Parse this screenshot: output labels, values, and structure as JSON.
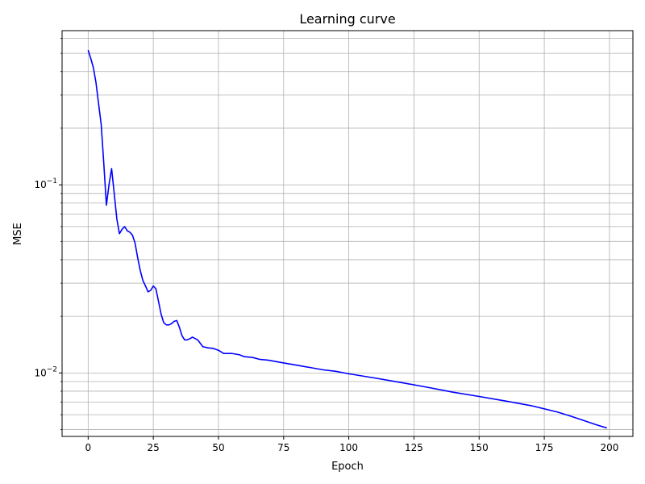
{
  "chart_data": {
    "type": "line",
    "title": "Learning curve",
    "xlabel": "Epoch",
    "ylabel": "MSE",
    "xlim": [
      -10,
      209
    ],
    "ylim": [
      0.0046,
      0.66
    ],
    "yscale": "log",
    "grid": true,
    "grid_minor": true,
    "x_ticks": [
      0,
      25,
      50,
      75,
      100,
      125,
      150,
      175,
      200
    ],
    "y_major_ticks": [
      {
        "value": 0.01,
        "label": "10",
        "exp": "−2"
      },
      {
        "value": 0.1,
        "label": "10",
        "exp": "−1"
      }
    ],
    "y_minor_ticks": [
      0.005,
      0.006,
      0.007,
      0.008,
      0.009,
      0.02,
      0.03,
      0.04,
      0.05,
      0.06,
      0.07,
      0.08,
      0.09,
      0.2,
      0.3,
      0.4,
      0.5,
      0.6
    ],
    "series": [
      {
        "color": "#0000ff",
        "x": [
          0,
          1,
          2,
          3,
          4,
          5,
          6,
          7,
          8,
          9,
          10,
          11,
          12,
          13,
          14,
          15,
          16,
          17,
          18,
          19,
          20,
          21,
          22,
          23,
          24,
          25,
          26,
          27,
          28,
          29,
          30,
          31,
          32,
          33,
          34,
          35,
          36,
          37,
          38,
          39,
          40,
          42,
          44,
          46,
          48,
          50,
          52,
          55,
          58,
          60,
          63,
          66,
          69,
          72,
          75,
          80,
          85,
          90,
          95,
          100,
          110,
          120,
          130,
          140,
          150,
          160,
          170,
          180,
          185,
          190,
          195,
          199
        ],
        "y": [
          0.52,
          0.47,
          0.42,
          0.35,
          0.27,
          0.21,
          0.13,
          0.078,
          0.1,
          0.122,
          0.09,
          0.066,
          0.055,
          0.058,
          0.06,
          0.057,
          0.056,
          0.054,
          0.049,
          0.041,
          0.035,
          0.031,
          0.029,
          0.027,
          0.0275,
          0.029,
          0.028,
          0.024,
          0.0205,
          0.0185,
          0.018,
          0.018,
          0.0183,
          0.0188,
          0.019,
          0.0175,
          0.0158,
          0.015,
          0.015,
          0.0152,
          0.0155,
          0.015,
          0.0138,
          0.0136,
          0.0135,
          0.0132,
          0.0127,
          0.0127,
          0.0125,
          0.0122,
          0.0121,
          0.0118,
          0.0117,
          0.0115,
          0.0113,
          0.011,
          0.0107,
          0.0104,
          0.0102,
          0.0099,
          0.0094,
          0.0089,
          0.0084,
          0.0079,
          0.0075,
          0.0071,
          0.0067,
          0.0062,
          0.0059,
          0.0056,
          0.0053,
          0.0051
        ]
      }
    ]
  }
}
